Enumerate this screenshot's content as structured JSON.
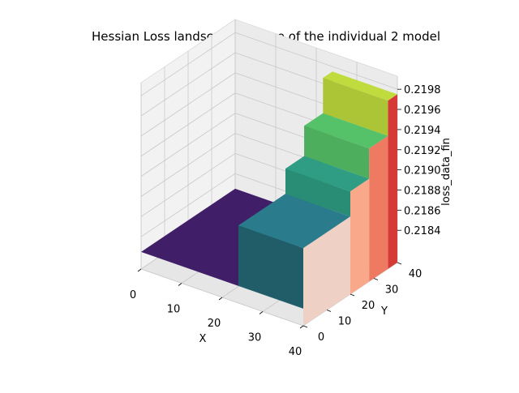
{
  "chart_data": {
    "type": "surface3d",
    "title": "Hessian Loss landscape surface of the individual 2 model",
    "xlabel": "X",
    "ylabel": "Y",
    "zlabel": "loss_data_fin",
    "x_ticks": [
      "0",
      "10",
      "20",
      "30",
      "40"
    ],
    "y_ticks": [
      "0",
      "10",
      "20",
      "30",
      "40"
    ],
    "z_ticks": [
      "0.2184",
      "0.2186",
      "0.2188",
      "0.2190",
      "0.2192",
      "0.2194",
      "0.2196",
      "0.2198"
    ],
    "xlim": [
      0,
      40
    ],
    "ylim": [
      0,
      40
    ],
    "zlim": [
      0.2184,
      0.2199
    ],
    "grid": true,
    "colormap": "viridis",
    "side_colormap": "reds",
    "surface_levels": [
      {
        "x_range": [
          0,
          24
        ],
        "y_range": [
          0,
          40
        ],
        "z": 0.21825
      },
      {
        "x_range": [
          24,
          40
        ],
        "y_range": [
          0,
          20
        ],
        "z": 0.21885
      },
      {
        "x_range": [
          24,
          40
        ],
        "y_range": [
          20,
          28
        ],
        "z": 0.2191
      },
      {
        "x_range": [
          24,
          40
        ],
        "y_range": [
          28,
          36
        ],
        "z": 0.2194
      },
      {
        "x_range": [
          24,
          40
        ],
        "y_range": [
          36,
          40
        ],
        "z": 0.21975
      }
    ]
  }
}
